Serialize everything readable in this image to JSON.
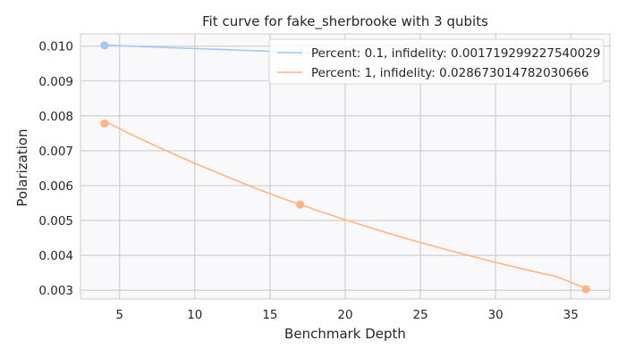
{
  "chart_data": {
    "type": "line",
    "title": "Fit curve for fake_sherbrooke with 3 qubits",
    "xlabel": "Benchmark Depth",
    "ylabel": "Polarization",
    "xlim": [
      2.4,
      37.6
    ],
    "ylim": [
      0.00275,
      0.01035
    ],
    "xticks": [
      5,
      10,
      15,
      20,
      25,
      30,
      35
    ],
    "yticks": [
      0.003,
      0.004,
      0.005,
      0.006,
      0.007,
      0.008,
      0.009,
      0.01
    ],
    "ytick_labels": [
      "0.003",
      "0.004",
      "0.005",
      "0.006",
      "0.007",
      "0.008",
      "0.009",
      "0.010"
    ],
    "grid": true,
    "legend_position": "top-right",
    "series": [
      {
        "name": "Percent: 0.1, infidelity: 0.001719299227540029",
        "color": "#a1c9f4",
        "points": {
          "x": [
            4,
            17,
            36
          ],
          "y": [
            0.01002,
            0.00983,
            0.00948
          ]
        },
        "fit": {
          "x": [
            4,
            8,
            12,
            17,
            22,
            26,
            30,
            33,
            36
          ],
          "y": [
            0.01003,
            0.00996,
            0.0099,
            0.00982,
            0.00973,
            0.00966,
            0.0096,
            0.00954,
            0.00949
          ]
        }
      },
      {
        "name": "Percent: 1, infidelity: 0.028673014782030666",
        "color": "#ffb482",
        "points": {
          "x": [
            4,
            17,
            36
          ],
          "y": [
            0.00778,
            0.00546,
            0.00303
          ]
        },
        "fit": {
          "x": [
            4,
            6,
            8,
            10,
            12,
            14,
            16,
            18,
            20,
            22,
            24,
            26,
            28,
            30,
            32,
            34,
            36
          ],
          "y": [
            0.00785,
            0.00742,
            0.00702,
            0.00664,
            0.00628,
            0.00593,
            0.00561,
            0.00531,
            0.00502,
            0.00475,
            0.00449,
            0.00425,
            0.00402,
            0.0038,
            0.00359,
            0.0034,
            0.00306
          ]
        }
      }
    ]
  }
}
